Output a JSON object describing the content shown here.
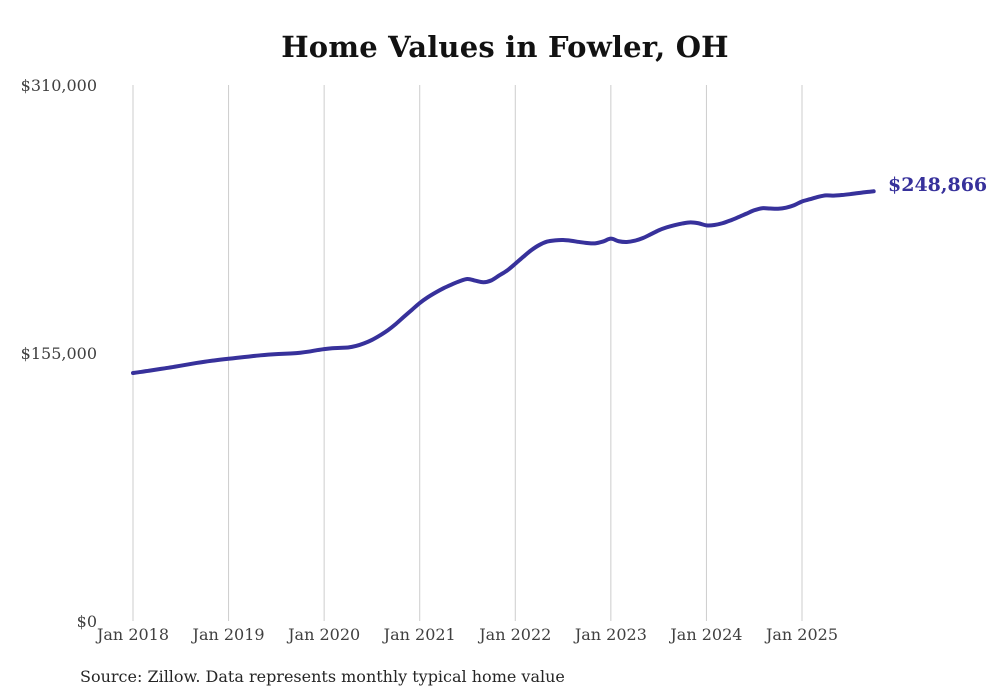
{
  "title": "Home Values in Fowler, OH",
  "source_note": "Source: Zillow. Data represents monthly typical home value",
  "colors": {
    "line": "#37319b",
    "latest_label": "#37319b",
    "grid": "#cdcdcd",
    "title_text": "#121212",
    "axis_text": "#404040",
    "source_text": "#262626",
    "background": "#ffffff"
  },
  "chart_data": {
    "type": "line",
    "title": "Home Values in Fowler, OH",
    "xlabel": "",
    "ylabel": "",
    "ylim": [
      0,
      310000
    ],
    "grid": "vertical-only",
    "legend": "none",
    "x_start_month": "Jan 2018",
    "x_end_month": "Oct 2025",
    "x_tick_labels": [
      "Jan 2018",
      "Jan 2019",
      "Jan 2020",
      "Jan 2021",
      "Jan 2022",
      "Jan 2023",
      "Jan 2024",
      "Jan 2025"
    ],
    "y_ticks": [
      {
        "label": "$0",
        "value": 0
      },
      {
        "label": "$155,000",
        "value": 155000
      },
      {
        "label": "$310,000",
        "value": 310000
      }
    ],
    "latest_value": 248866,
    "latest_value_label": "$248,866",
    "series": [
      {
        "name": "Monthly typical home value",
        "values": [
          143900,
          144500,
          145200,
          145900,
          146600,
          147300,
          148100,
          148900,
          149700,
          150400,
          151000,
          151600,
          152100,
          152600,
          153100,
          153600,
          154100,
          154500,
          154800,
          155000,
          155200,
          155600,
          156200,
          157000,
          157700,
          158200,
          158400,
          158600,
          159500,
          161000,
          163000,
          165600,
          168600,
          172200,
          176300,
          180300,
          184300,
          187600,
          190400,
          192900,
          195000,
          196900,
          198200,
          197200,
          196300,
          197400,
          200300,
          203200,
          207000,
          211000,
          214800,
          217800,
          219800,
          220500,
          220700,
          220300,
          219600,
          219000,
          218800,
          219800,
          221500,
          220000,
          219600,
          220300,
          221800,
          224000,
          226300,
          228000,
          229300,
          230300,
          230900,
          230400,
          229200,
          229400,
          230400,
          232000,
          233900,
          235900,
          237900,
          239100,
          238900,
          238800,
          239400,
          240800,
          243000,
          244300,
          245600,
          246500,
          246400,
          246700,
          247200,
          247800,
          248400,
          248866
        ]
      }
    ]
  }
}
